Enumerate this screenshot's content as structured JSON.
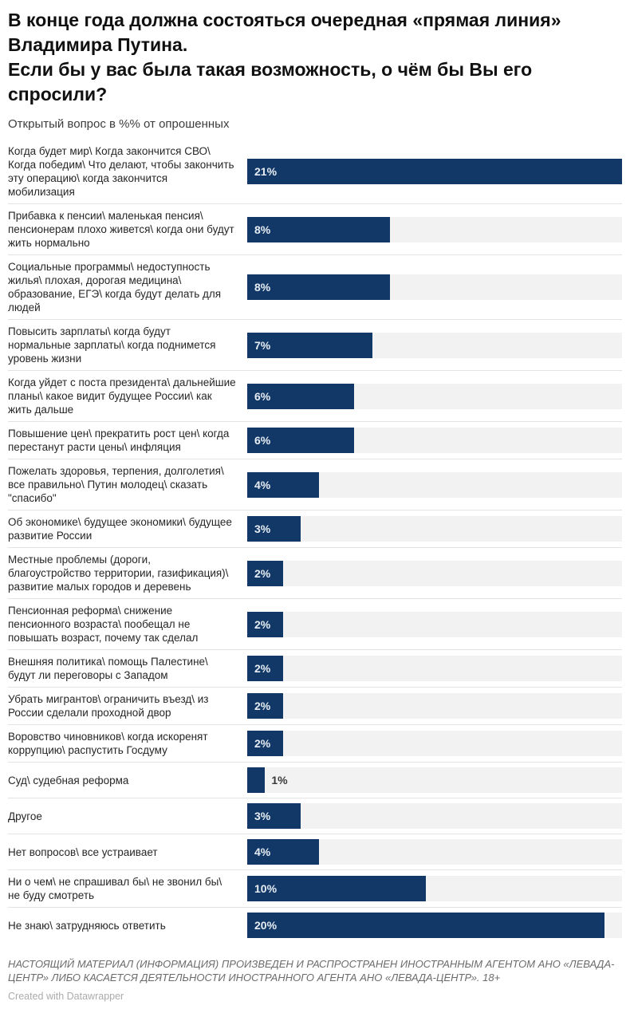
{
  "header": {
    "title": "В конце года должна состояться очередная «прямая линия» Владимира Путина.\nЕсли бы у вас была такая возможность, о чём бы Вы его спросили?",
    "subtitle": "Открытый вопрос в %% от опрошенных"
  },
  "chart_data": {
    "type": "bar",
    "orientation": "horizontal",
    "title": "В конце года должна состояться очередная «прямая линия» Владимира Путина. Если бы у вас была такая возможность, о чём бы Вы его спросили?",
    "subtitle": "Открытый вопрос в %% от опрошенных",
    "xlim": [
      0,
      21
    ],
    "value_suffix": "%",
    "grid": false,
    "legend": false,
    "bar_color": "#113866",
    "track_color": "#f2f2f2",
    "value_label_inside_color": "#e8edf4",
    "value_label_outside_color": "#3a3a3a",
    "inside_label_min_value": 2,
    "categories": [
      "Когда будет мир\\ Когда закончится СВО\\ Когда победим\\ Что делают, чтобы закончить эту операцию\\ когда закончится мобилизация",
      "Прибавка к пенсии\\ маленькая пенсия\\ пенсионерам плохо живется\\ когда они будут жить нормально",
      "Социальные программы\\ недоступность жилья\\ плохая, дорогая медицина\\ образование, ЕГЭ\\ когда будут делать для людей",
      "Повысить зарплаты\\ когда будут нормальные зарплаты\\ когда поднимется уровень жизни",
      "Когда уйдет с поста президента\\ дальнейшие планы\\ какое видит будущее России\\ как жить дальше",
      "Повышение цен\\ прекратить рост цен\\ когда перестанут расти цены\\ инфляция",
      "Пожелать здоровья, терпения, долголетия\\ все правильно\\ Путин молодец\\ сказать \"спасибо\"",
      "Об экономике\\ будущее экономики\\ будущее развитие России",
      "Местные проблемы (дороги, благоустройство территории, газификация)\\ развитие малых городов и деревень",
      "Пенсионная реформа\\ снижение пенсионного возраста\\ пообещал не повышать возраст, почему так сделал",
      "Внешняя политика\\ помощь Палестине\\ будут ли переговоры с Западом",
      "Убрать мигрантов\\ ограничить въезд\\ из России сделали проходной двор",
      "Воровство чиновников\\ когда искоренят коррупцию\\ распустить Госдуму",
      "Суд\\ судебная реформа",
      "Другое",
      "Нет вопросов\\ все устраивает",
      "Ни о чем\\ не спрашивал бы\\ не звонил бы\\ не буду смотреть",
      "Не знаю\\ затрудняюсь ответить"
    ],
    "values": [
      21,
      8,
      8,
      7,
      6,
      6,
      4,
      3,
      2,
      2,
      2,
      2,
      2,
      1,
      3,
      4,
      10,
      20
    ]
  },
  "footer": {
    "disclaimer": "НАСТОЯЩИЙ МАТЕРИАЛ (ИНФОРМАЦИЯ) ПРОИЗВЕДЕН И РАСПРОСТРАНЕН ИНОСТРАННЫМ АГЕНТОМ АНО «ЛЕВАДА-ЦЕНТР» ЛИБО КАСАЕТСЯ ДЕЯТЕЛЬНОСТИ ИНОСТРАННОГО АГЕНТА АНО «ЛЕВАДА-ЦЕНТР». 18+",
    "attribution": "Created with Datawrapper"
  }
}
